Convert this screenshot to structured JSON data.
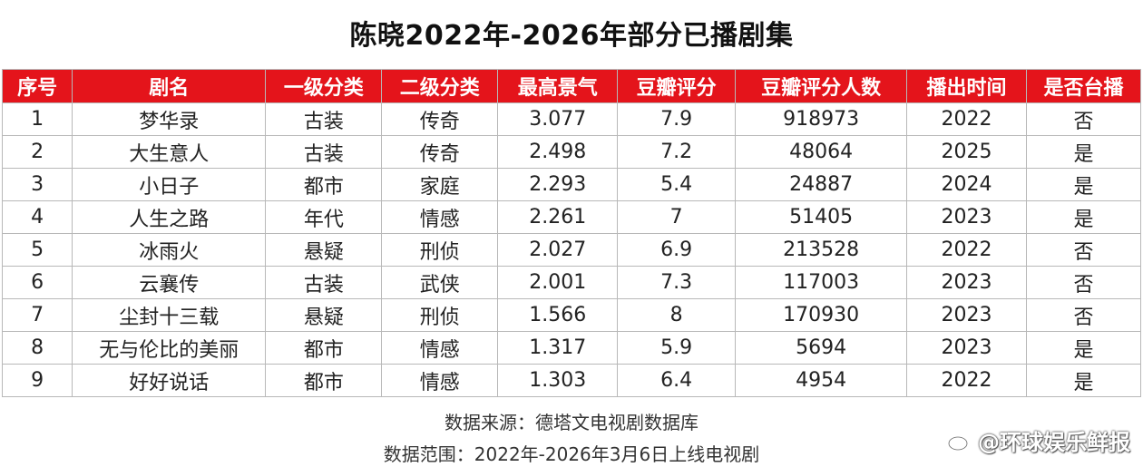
{
  "title": "陈晓2022年-2026年部分已播剧集",
  "table": {
    "headers": [
      "序号",
      "剧名",
      "一级分类",
      "二级分类",
      "最高景气",
      "豆瓣评分",
      "豆瓣评分人数",
      "播出时间",
      "是否台播"
    ],
    "rows": [
      [
        "1",
        "梦华录",
        "古装",
        "传奇",
        "3.077",
        "7.9",
        "918973",
        "2022",
        "否"
      ],
      [
        "2",
        "大生意人",
        "古装",
        "传奇",
        "2.498",
        "7.2",
        "48064",
        "2025",
        "是"
      ],
      [
        "3",
        "小日子",
        "都市",
        "家庭",
        "2.293",
        "5.4",
        "24887",
        "2024",
        "是"
      ],
      [
        "4",
        "人生之路",
        "年代",
        "情感",
        "2.261",
        "7",
        "51405",
        "2023",
        "是"
      ],
      [
        "5",
        "冰雨火",
        "悬疑",
        "刑侦",
        "2.027",
        "6.9",
        "213528",
        "2022",
        "否"
      ],
      [
        "6",
        "云襄传",
        "古装",
        "武侠",
        "2.001",
        "7.3",
        "117003",
        "2023",
        "否"
      ],
      [
        "7",
        "尘封十三载",
        "悬疑",
        "刑侦",
        "1.566",
        "8",
        "170930",
        "2023",
        "否"
      ],
      [
        "8",
        "无与伦比的美丽",
        "都市",
        "情感",
        "1.317",
        "5.9",
        "5694",
        "2023",
        "是"
      ],
      [
        "9",
        "好好说话",
        "都市",
        "情感",
        "1.303",
        "6.4",
        "4954",
        "2022",
        "是"
      ]
    ]
  },
  "footer": {
    "source": "数据来源：德塔文电视剧数据库",
    "range": "数据范围：2022年-2026年3月6日上线电视剧"
  },
  "watermark": {
    "text": "@环球娱乐鲜报",
    "icon": "weibo-icon"
  },
  "colors": {
    "header_bg": "#e4141b",
    "header_text": "#ffffff"
  }
}
